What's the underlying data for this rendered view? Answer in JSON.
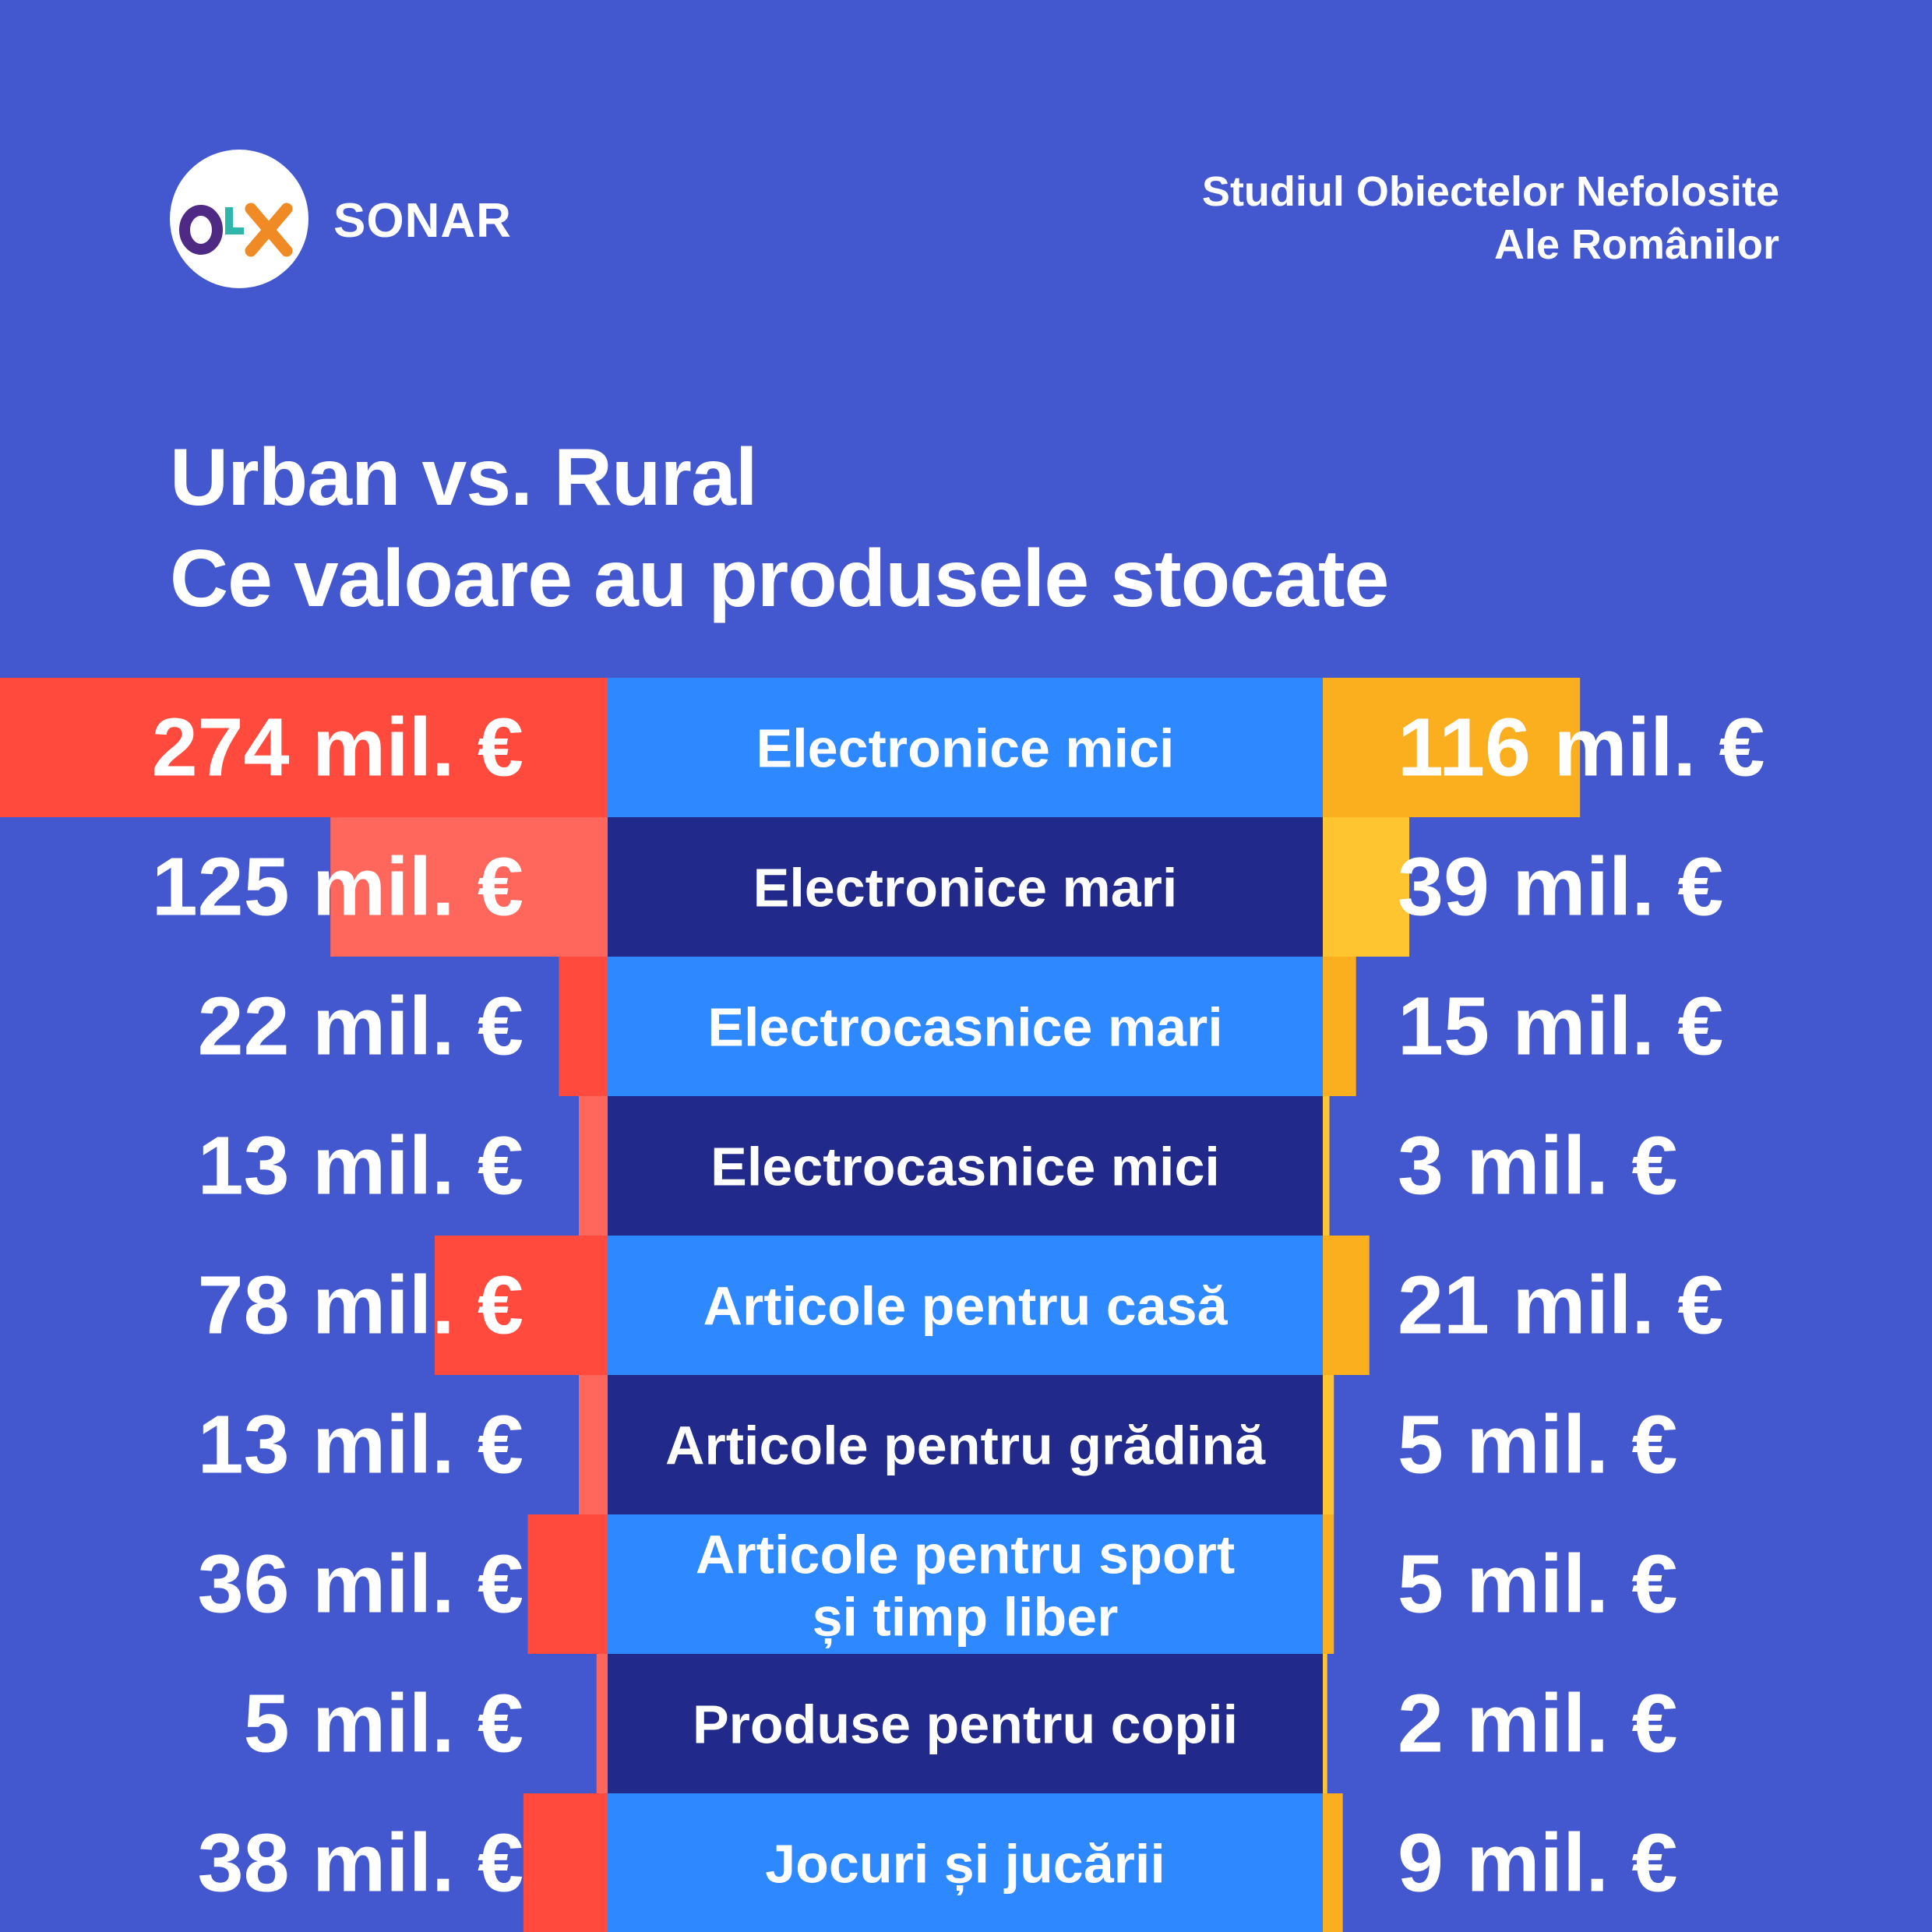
{
  "header": {
    "logo_text": "OLX",
    "brand": "SONAR",
    "study_line1": "Studiul Obiectelor Nefolosite",
    "study_line2": "Ale Românilor"
  },
  "title": {
    "line1": "Urban vs. Rural",
    "line2": "Ce valoare au produsele stocate"
  },
  "colors": {
    "background": "#4357CF",
    "urban_bar": "#FF4A3D",
    "urban_bar_alt": "#FF665C",
    "rural_bar": "#FBAE1E",
    "rural_bar_alt": "#FFC531",
    "category_light": "#2E88FF",
    "category_dark": "#212A8A",
    "text": "#FFFFFF"
  },
  "chart_data": {
    "type": "bar",
    "unit": "mil. €",
    "categories": [
      "Electronice mici",
      "Electronice mari",
      "Electrocasnice mari",
      "Electrocasnice mici",
      "Articole pentru casă",
      "Articole pentru grădină",
      "Articole pentru sport și timp liber",
      "Produse pentru copii",
      "Jocuri și jucării"
    ],
    "series": [
      {
        "values": [
          274,
          125,
          22,
          13,
          78,
          13,
          36,
          5,
          38
        ],
        "labels": [
          "274 mil. €",
          "125 mil. €",
          "22 mil. €",
          "13 mil. €",
          "78 mil. €",
          "13 mil. €",
          "36 mil. €",
          "5 mil. €",
          "38 mil. €"
        ]
      },
      {
        "values": [
          116,
          39,
          15,
          3,
          21,
          5,
          5,
          2,
          9
        ],
        "labels": [
          "116 mil. €",
          "39 mil. €",
          "15 mil. €",
          "3 mil. €",
          "21 mil. €",
          "5 mil. €",
          "5 mil. €",
          "2 mil. €",
          "9 mil. €"
        ]
      }
    ]
  }
}
